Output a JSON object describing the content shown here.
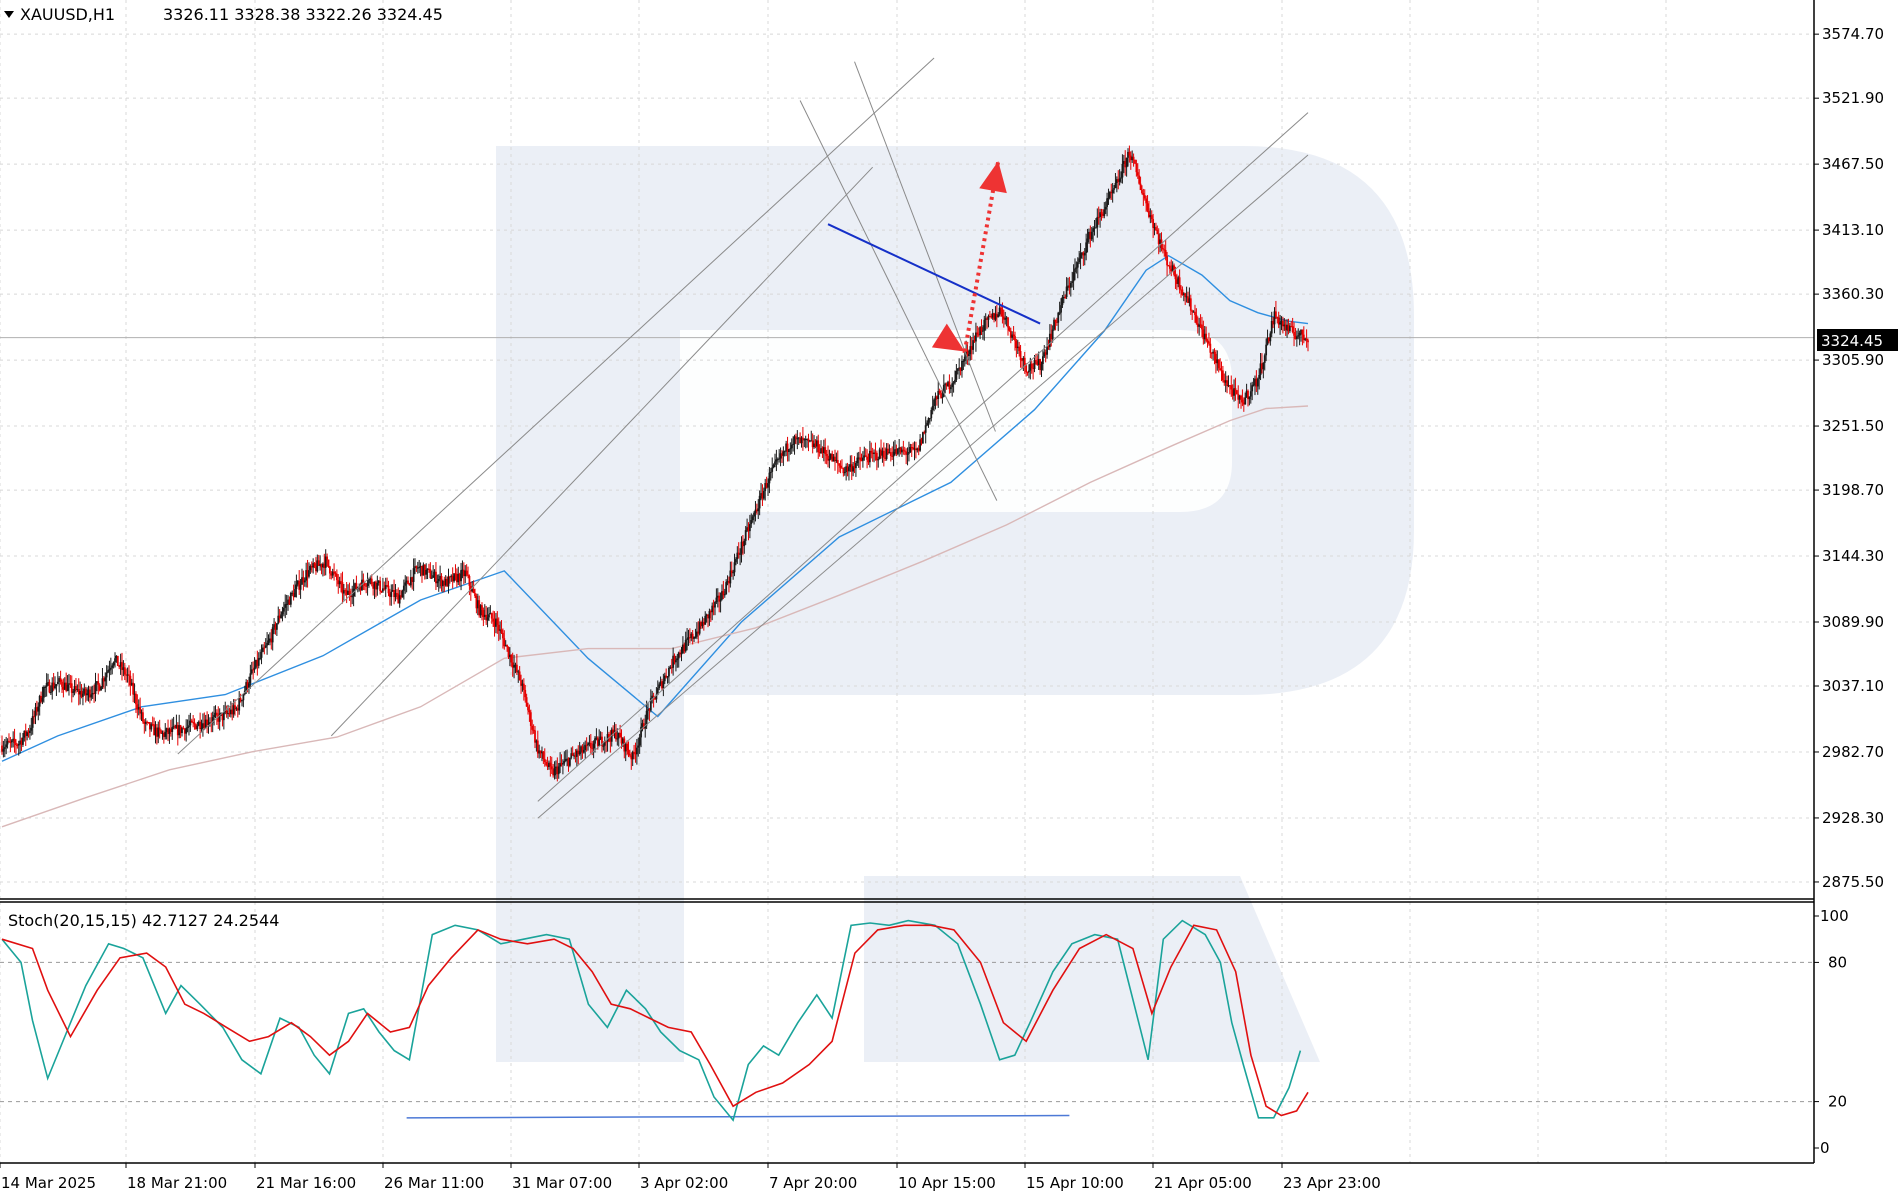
{
  "header": {
    "symbol": "XAUUSD,H1",
    "ohlc": "3326.11 3328.38 3322.26 3324.45"
  },
  "colors": {
    "bull": "#1a1a1a",
    "bear": "#e60000",
    "ma_fast": "#2f8fe0",
    "ma_slow": "#d9b8b8",
    "stoch_main": "#1aa39a",
    "stoch_signal": "#e01010",
    "trendline_blue": "#1530c8",
    "forecast_arrow": "#ee3333",
    "watermark": "#e4e9f3",
    "grid": "#d8d8d8",
    "price_label_bg": "#000000"
  },
  "chart_data": [
    {
      "type": "candlestick",
      "title": "XAUUSD,H1",
      "last_price": 3324.45,
      "last_price_label": "3324.45",
      "ylim": [
        2861.45,
        3602.87
      ],
      "y_ticks": [
        3574.7,
        3521.9,
        3467.5,
        3413.1,
        3360.3,
        3305.9,
        3251.5,
        3198.7,
        3144.3,
        3089.9,
        3037.1,
        2982.7,
        2928.3,
        2875.5
      ],
      "y_tick_labels": [
        "3574.70",
        "3521.90",
        "3467.50",
        "3413.10",
        "3360.30",
        "3305.90",
        "3251.50",
        "3198.70",
        "3144.30",
        "3089.90",
        "3037.10",
        "2982.70",
        "2928.30",
        "2875.50"
      ],
      "x_labels": [
        "14 Mar 2025",
        "18 Mar 21:00",
        "21 Mar 16:00",
        "26 Mar 11:00",
        "31 Mar 07:00",
        "3 Apr 02:00",
        "7 Apr 20:00",
        "10 Apr 15:00",
        "15 Apr 10:00",
        "21 Apr 05:00",
        "23 Apr 23:00"
      ],
      "grid": true,
      "bars_count": 235,
      "price_path": [
        [
          0,
          2988
        ],
        [
          12,
          2990
        ],
        [
          20,
          3002
        ],
        [
          30,
          3035
        ],
        [
          42,
          3040
        ],
        [
          50,
          3034
        ],
        [
          60,
          3030
        ],
        [
          70,
          3038
        ],
        [
          80,
          3060
        ],
        [
          90,
          3045
        ],
        [
          102,
          3005
        ],
        [
          114,
          2997
        ],
        [
          130,
          3002
        ],
        [
          143,
          3007
        ],
        [
          158,
          3012
        ],
        [
          168,
          3018
        ],
        [
          178,
          3045
        ],
        [
          192,
          3075
        ],
        [
          200,
          3098
        ],
        [
          218,
          3130
        ],
        [
          232,
          3140
        ],
        [
          246,
          3112
        ],
        [
          262,
          3125
        ],
        [
          284,
          3110
        ],
        [
          298,
          3135
        ],
        [
          318,
          3122
        ],
        [
          332,
          3130
        ],
        [
          342,
          3100
        ],
        [
          354,
          3090
        ],
        [
          372,
          3040
        ],
        [
          384,
          2985
        ],
        [
          394,
          2965
        ],
        [
          408,
          2978
        ],
        [
          426,
          2990
        ],
        [
          440,
          2998
        ],
        [
          452,
          2978
        ],
        [
          464,
          3020
        ],
        [
          482,
          3060
        ],
        [
          500,
          3085
        ],
        [
          516,
          3112
        ],
        [
          532,
          3158
        ],
        [
          550,
          3210
        ],
        [
          566,
          3240
        ],
        [
          584,
          3235
        ],
        [
          604,
          3215
        ],
        [
          618,
          3225
        ],
        [
          636,
          3230
        ],
        [
          656,
          3230
        ],
        [
          668,
          3272
        ],
        [
          682,
          3290
        ],
        [
          700,
          3330
        ],
        [
          716,
          3348
        ],
        [
          734,
          3300
        ],
        [
          744,
          3302
        ],
        [
          762,
          3360
        ],
        [
          780,
          3410
        ],
        [
          798,
          3448
        ],
        [
          808,
          3478
        ],
        [
          820,
          3435
        ],
        [
          834,
          3390
        ],
        [
          848,
          3360
        ],
        [
          860,
          3330
        ],
        [
          876,
          3290
        ],
        [
          888,
          3270
        ],
        [
          900,
          3290
        ],
        [
          912,
          3343
        ],
        [
          922,
          3330
        ],
        [
          936,
          3324
        ]
      ],
      "series": [
        {
          "name": "",
          "style": "ma_fast",
          "points": [
            [
              0,
              2975
            ],
            [
              40,
              2996
            ],
            [
              100,
              3020
            ],
            [
              160,
              3030
            ],
            [
              230,
              3062
            ],
            [
              300,
              3108
            ],
            [
              360,
              3132
            ],
            [
              420,
              3060
            ],
            [
              470,
              3012
            ],
            [
              530,
              3090
            ],
            [
              600,
              3160
            ],
            [
              680,
              3205
            ],
            [
              740,
              3265
            ],
            [
              790,
              3330
            ],
            [
              820,
              3380
            ],
            [
              836,
              3392
            ],
            [
              860,
              3376
            ],
            [
              880,
              3355
            ],
            [
              900,
              3345
            ],
            [
              922,
              3338
            ],
            [
              936,
              3336
            ]
          ]
        },
        {
          "name": "",
          "style": "ma_slow",
          "points": [
            [
              0,
              2921
            ],
            [
              60,
              2945
            ],
            [
              120,
              2968
            ],
            [
              180,
              2983
            ],
            [
              240,
              2995
            ],
            [
              300,
              3020
            ],
            [
              360,
              3060
            ],
            [
              420,
              3068
            ],
            [
              480,
              3068
            ],
            [
              540,
              3085
            ],
            [
              600,
              3112
            ],
            [
              660,
              3140
            ],
            [
              720,
              3170
            ],
            [
              780,
              3205
            ],
            [
              840,
              3236
            ],
            [
              880,
              3256
            ],
            [
              906,
              3266
            ],
            [
              936,
              3268
            ]
          ]
        }
      ],
      "annotations": {
        "trend_lines": [
          {
            "from": [
              126,
              2981
            ],
            "to": [
              668,
              3555
            ]
          },
          {
            "from": [
              236,
              2996
            ],
            "to": [
              624,
              3465
            ],
            "note": ""
          },
          {
            "from": [
              384,
              2942
            ],
            "to": [
              936,
              3510
            ]
          },
          {
            "from": [
              384,
              2928
            ],
            "to": [
              936,
              3475
            ]
          },
          {
            "from": [
              572,
              3520
            ],
            "to": [
              713,
              3190
            ]
          },
          {
            "from": [
              611,
              3552
            ],
            "to": [
              712,
              3247
            ]
          },
          {
            "from": [
              592,
              3418
            ],
            "to": [
              744,
              3336
            ],
            "color": "trendline_blue"
          }
        ],
        "forecast": [
          {
            "from": [
              672,
              3326
            ],
            "to": [
              690,
              3313
            ]
          },
          {
            "from": [
              690,
              3313
            ],
            "to": [
              714,
              3470
            ]
          }
        ]
      }
    },
    {
      "type": "line",
      "title": "Stoch(20,15,15) 42.7127 24.2544",
      "ylim": [
        0,
        100
      ],
      "y_ticks": [
        100,
        80,
        20,
        0
      ],
      "y_tick_labels": [
        "100",
        "80",
        "20",
        "0"
      ],
      "levels": [
        80,
        20
      ],
      "grid": true,
      "series": [
        {
          "name": "",
          "style": "stoch_main",
          "points": [
            [
              0,
              90
            ],
            [
              10,
              80
            ],
            [
              16,
              55
            ],
            [
              24,
              30
            ],
            [
              34,
              50
            ],
            [
              44,
              70
            ],
            [
              56,
              88
            ],
            [
              64,
              86
            ],
            [
              74,
              82
            ],
            [
              86,
              58
            ],
            [
              94,
              70
            ],
            [
              104,
              62
            ],
            [
              116,
              52
            ],
            [
              126,
              38
            ],
            [
              136,
              32
            ],
            [
              146,
              56
            ],
            [
              156,
              52
            ],
            [
              164,
              40
            ],
            [
              172,
              32
            ],
            [
              182,
              58
            ],
            [
              190,
              60
            ],
            [
              198,
              50
            ],
            [
              206,
              42
            ],
            [
              214,
              38
            ],
            [
              226,
              92
            ],
            [
              238,
              96
            ],
            [
              250,
              94
            ],
            [
              262,
              88
            ],
            [
              274,
              90
            ],
            [
              286,
              92
            ],
            [
              298,
              90
            ],
            [
              308,
              62
            ],
            [
              318,
              52
            ],
            [
              328,
              68
            ],
            [
              338,
              60
            ],
            [
              346,
              50
            ],
            [
              356,
              42
            ],
            [
              366,
              38
            ],
            [
              374,
              22
            ],
            [
              384,
              12
            ],
            [
              392,
              36
            ],
            [
              400,
              44
            ],
            [
              408,
              40
            ],
            [
              418,
              54
            ],
            [
              428,
              66
            ],
            [
              436,
              56
            ],
            [
              446,
              96
            ],
            [
              456,
              97
            ],
            [
              466,
              96
            ],
            [
              476,
              98
            ],
            [
              490,
              96
            ],
            [
              502,
              88
            ],
            [
              514,
              62
            ],
            [
              524,
              38
            ],
            [
              532,
              40
            ],
            [
              540,
              54
            ],
            [
              552,
              76
            ],
            [
              562,
              88
            ],
            [
              574,
              92
            ],
            [
              586,
              90
            ],
            [
              594,
              64
            ],
            [
              602,
              38
            ],
            [
              610,
              90
            ],
            [
              620,
              98
            ],
            [
              632,
              92
            ],
            [
              640,
              80
            ],
            [
              646,
              54
            ],
            [
              652,
              36
            ],
            [
              660,
              13
            ],
            [
              668,
              13
            ],
            [
              676,
              26
            ],
            [
              682,
              42
            ]
          ]
        },
        {
          "name": "",
          "style": "stoch_signal",
          "points": [
            [
              0,
              90
            ],
            [
              16,
              86
            ],
            [
              24,
              68
            ],
            [
              36,
              48
            ],
            [
              50,
              68
            ],
            [
              62,
              82
            ],
            [
              76,
              84
            ],
            [
              86,
              78
            ],
            [
              96,
              62
            ],
            [
              106,
              58
            ],
            [
              118,
              52
            ],
            [
              130,
              46
            ],
            [
              140,
              48
            ],
            [
              152,
              54
            ],
            [
              162,
              48
            ],
            [
              172,
              40
            ],
            [
              182,
              46
            ],
            [
              192,
              58
            ],
            [
              204,
              50
            ],
            [
              214,
              52
            ],
            [
              224,
              70
            ],
            [
              236,
              82
            ],
            [
              250,
              94
            ],
            [
              262,
              90
            ],
            [
              276,
              88
            ],
            [
              290,
              90
            ],
            [
              300,
              86
            ],
            [
              310,
              76
            ],
            [
              320,
              62
            ],
            [
              330,
              60
            ],
            [
              340,
              56
            ],
            [
              350,
              52
            ],
            [
              362,
              50
            ],
            [
              372,
              36
            ],
            [
              384,
              18
            ],
            [
              396,
              24
            ],
            [
              410,
              28
            ],
            [
              424,
              36
            ],
            [
              436,
              46
            ],
            [
              448,
              84
            ],
            [
              460,
              94
            ],
            [
              474,
              96
            ],
            [
              488,
              96
            ],
            [
              500,
              94
            ],
            [
              514,
              80
            ],
            [
              526,
              54
            ],
            [
              538,
              46
            ],
            [
              552,
              68
            ],
            [
              566,
              86
            ],
            [
              580,
              92
            ],
            [
              594,
              86
            ],
            [
              604,
              58
            ],
            [
              614,
              78
            ],
            [
              626,
              96
            ],
            [
              638,
              94
            ],
            [
              648,
              76
            ],
            [
              656,
              40
            ],
            [
              664,
              18
            ],
            [
              672,
              14
            ],
            [
              680,
              16
            ],
            [
              686,
              24
            ]
          ]
        }
      ],
      "annotations": {
        "support_line": {
          "from": [
            290,
            13
          ],
          "to": [
            765,
            14
          ]
        }
      }
    }
  ]
}
